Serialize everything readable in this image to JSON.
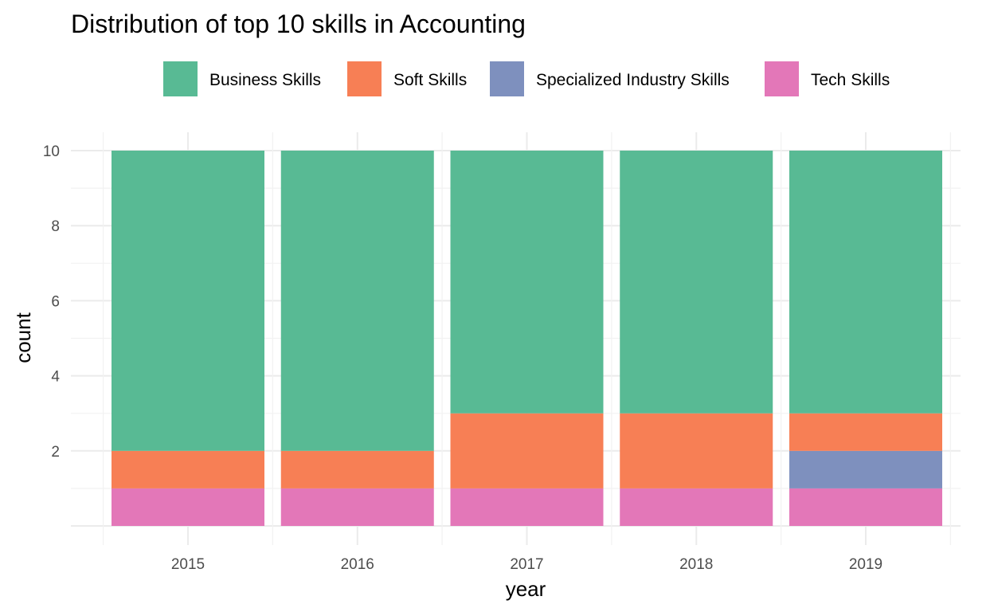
{
  "chart_data": {
    "type": "bar",
    "stacked": true,
    "title": "Distribution of top 10 skills in Accounting",
    "xlabel": "year",
    "ylabel": "count",
    "categories": [
      "2015",
      "2016",
      "2017",
      "2018",
      "2019"
    ],
    "ylim": [
      0,
      10
    ],
    "yticks": [
      2,
      4,
      6,
      8,
      10
    ],
    "grid": true,
    "legend_position": "top",
    "series": [
      {
        "name": "Tech Skills",
        "color": "#E377B8",
        "values": [
          1,
          1,
          1,
          1,
          1
        ]
      },
      {
        "name": "Specialized Industry Skills",
        "color": "#7E90BE",
        "values": [
          0,
          0,
          0,
          0,
          1
        ]
      },
      {
        "name": "Soft Skills",
        "color": "#F77F55",
        "values": [
          1,
          1,
          2,
          2,
          1
        ]
      },
      {
        "name": "Business Skills",
        "color": "#58BA94",
        "values": [
          8,
          8,
          7,
          7,
          7
        ]
      }
    ],
    "legend_order": [
      "Business Skills",
      "Soft Skills",
      "Specialized Industry Skills",
      "Tech Skills"
    ]
  }
}
